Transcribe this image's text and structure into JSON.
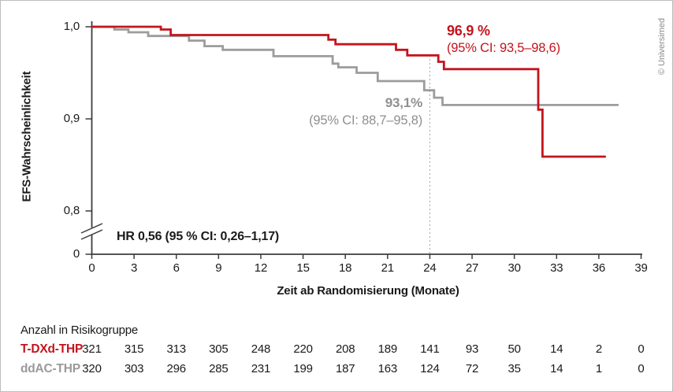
{
  "credit": "© Universimed",
  "colors": {
    "red": "#c3141d",
    "gray_line": "#9c9c9c",
    "gray_text": "#8f8f8f",
    "axis": "#3c3c3c",
    "black": "#1a1a1a",
    "dotted": "#b0b0b0"
  },
  "chart_data": {
    "type": "line",
    "subtype": "kaplan-meier-step",
    "title": "",
    "xlabel": "Zeit ab Randomisierung (Monate)",
    "ylabel": "EFS-Wahrscheinlichkeit",
    "xlim": [
      0,
      39
    ],
    "x_ticks": [
      0,
      3,
      6,
      9,
      12,
      15,
      18,
      21,
      24,
      27,
      30,
      33,
      36,
      39
    ],
    "y_ticks": [
      {
        "value": 1.0,
        "label": "1,0"
      },
      {
        "value": 0.9,
        "label": "0,9"
      },
      {
        "value": 0.8,
        "label": "0,8"
      },
      {
        "value": 0,
        "label": "0"
      }
    ],
    "y_axis_break": true,
    "grid": false,
    "reference_line_x": 24,
    "hr_annotation": "HR 0,56 (95 % CI: 0,26–1,17)",
    "series": [
      {
        "name": "T-DXd-THP",
        "color": "#c3141d",
        "annotation": {
          "value_label": "96,9 %",
          "ci_label": "(95% CI: 93,5–98,6)"
        },
        "points": [
          [
            0,
            1.0
          ],
          [
            4.9,
            0.997
          ],
          [
            5.6,
            0.991
          ],
          [
            16.8,
            0.986
          ],
          [
            17.3,
            0.981
          ],
          [
            21.6,
            0.975
          ],
          [
            22.4,
            0.969
          ],
          [
            24.6,
            0.962
          ],
          [
            25.0,
            0.954
          ],
          [
            31.7,
            0.91
          ],
          [
            32.0,
            0.859
          ]
        ],
        "end_month": 36.5
      },
      {
        "name": "ddAC-THP",
        "color": "#9c9c9c",
        "annotation": {
          "value_label": "93,1%",
          "ci_label": "(95% CI: 88,7–95,8)"
        },
        "points": [
          [
            0,
            1.0
          ],
          [
            1.6,
            0.997
          ],
          [
            2.6,
            0.994
          ],
          [
            4.0,
            0.99
          ],
          [
            6.9,
            0.985
          ],
          [
            8.0,
            0.979
          ],
          [
            9.3,
            0.975
          ],
          [
            12.9,
            0.968
          ],
          [
            17.1,
            0.96
          ],
          [
            17.5,
            0.956
          ],
          [
            18.8,
            0.95
          ],
          [
            20.3,
            0.941
          ],
          [
            23.6,
            0.931
          ],
          [
            24.3,
            0.923
          ],
          [
            24.9,
            0.915
          ]
        ],
        "end_month": 37.4
      }
    ]
  },
  "risk_table": {
    "title": "Anzahl in Risikogruppe",
    "months": [
      0,
      3,
      6,
      9,
      12,
      15,
      18,
      21,
      24,
      27,
      30,
      33,
      36,
      39
    ],
    "rows": [
      {
        "label": "T-DXd-THP",
        "color": "#c3141d",
        "counts": [
          321,
          315,
          313,
          305,
          248,
          220,
          208,
          189,
          141,
          93,
          50,
          14,
          2,
          0
        ]
      },
      {
        "label": "ddAC-THP",
        "color": "#9a9a9a",
        "counts": [
          320,
          303,
          296,
          285,
          231,
          199,
          187,
          163,
          124,
          72,
          35,
          14,
          1,
          0
        ]
      }
    ]
  }
}
